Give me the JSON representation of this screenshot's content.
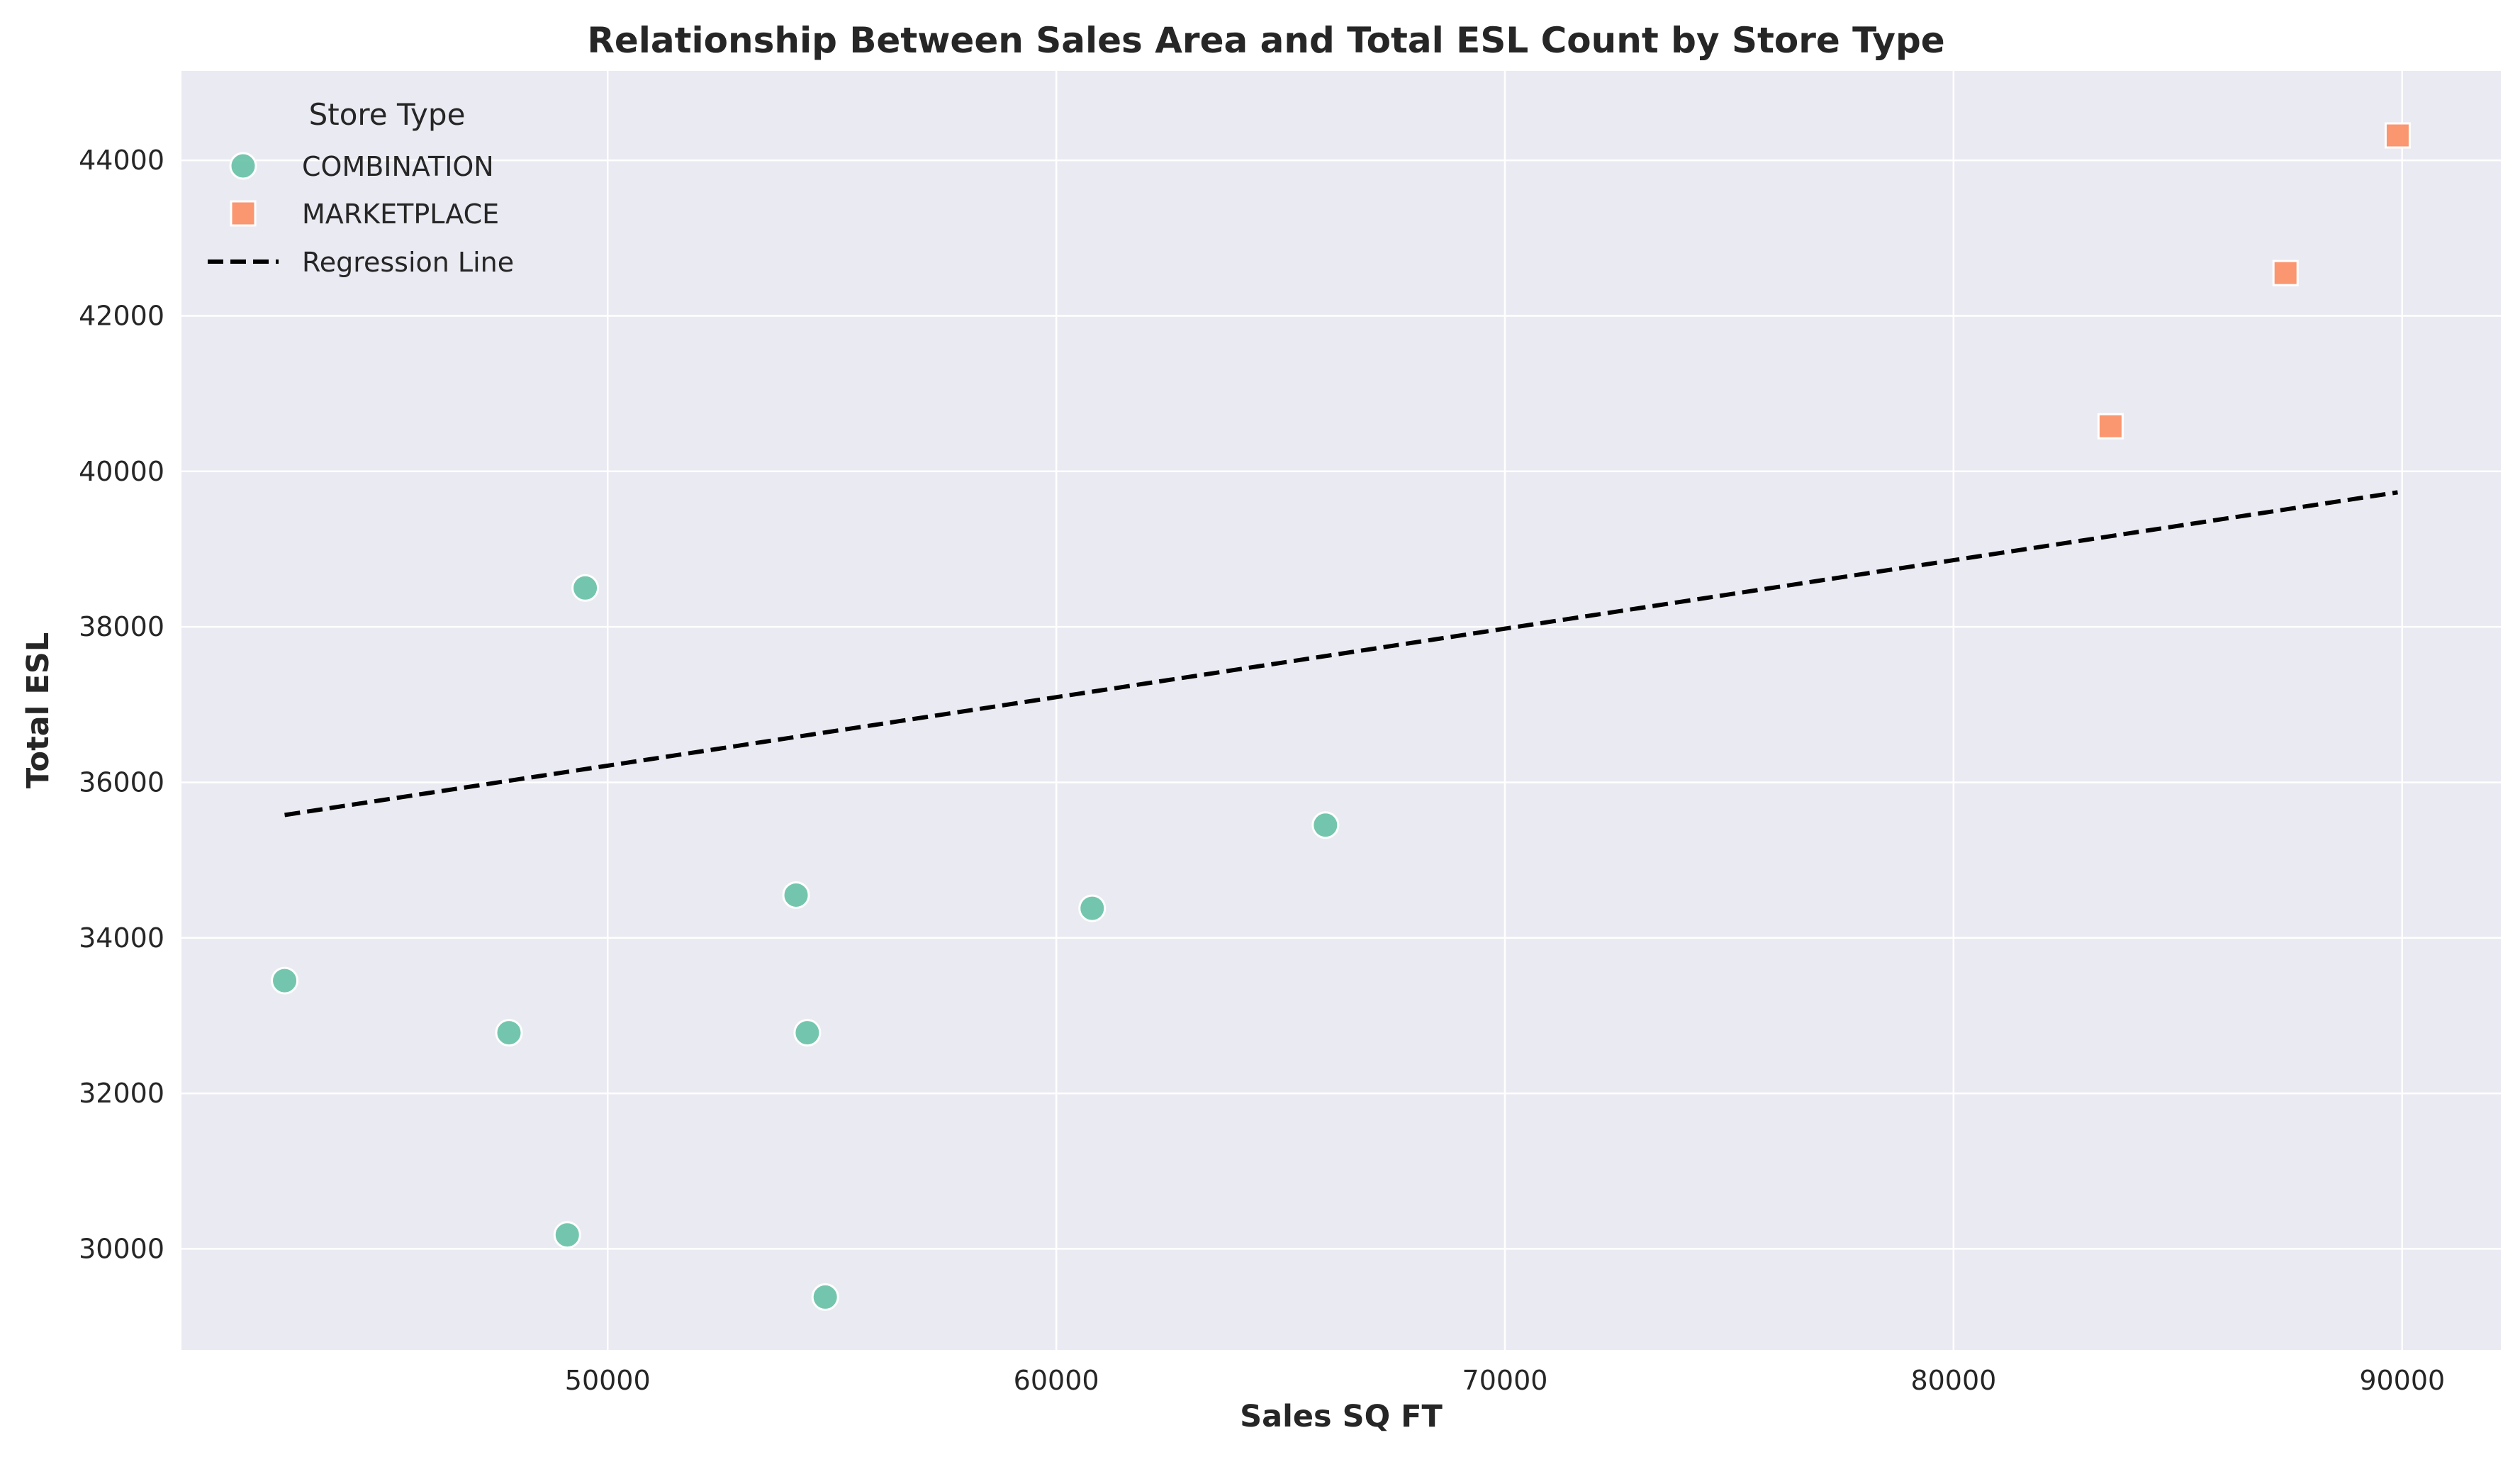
{
  "chart_data": {
    "type": "scatter",
    "title": "Relationship Between Sales Area and Total ESL Count by Store Type",
    "xlabel": "Sales SQ FT",
    "ylabel": "Total ESL",
    "xlim": [
      40500,
      92200
    ],
    "ylim": [
      28700,
      45150
    ],
    "x_ticks": [
      50000,
      60000,
      70000,
      80000,
      90000
    ],
    "x_tick_labels": [
      "50000",
      "60000",
      "70000",
      "80000",
      "90000"
    ],
    "y_ticks": [
      30000,
      32000,
      34000,
      36000,
      38000,
      40000,
      42000,
      44000
    ],
    "y_tick_labels": [
      "30000",
      "32000",
      "34000",
      "36000",
      "38000",
      "40000",
      "42000",
      "44000"
    ],
    "grid": true,
    "legend": {
      "title": "Store Type",
      "placement": "top-left",
      "regression_label": "Regression Line"
    },
    "series": [
      {
        "name": "COMBINATION",
        "marker": "circle",
        "color": "#66c2a5",
        "points": [
          {
            "x": 42800,
            "y": 33450
          },
          {
            "x": 47800,
            "y": 32780
          },
          {
            "x": 49100,
            "y": 30180
          },
          {
            "x": 49500,
            "y": 38500
          },
          {
            "x": 54200,
            "y": 34550
          },
          {
            "x": 54450,
            "y": 32780
          },
          {
            "x": 54850,
            "y": 29380
          },
          {
            "x": 60800,
            "y": 34380
          },
          {
            "x": 66000,
            "y": 35450
          }
        ]
      },
      {
        "name": "MARKETPLACE",
        "marker": "square",
        "color": "#fc8d62",
        "points": [
          {
            "x": 83500,
            "y": 40580
          },
          {
            "x": 87400,
            "y": 42550
          },
          {
            "x": 89900,
            "y": 44320
          }
        ]
      }
    ],
    "regression": {
      "name": "Regression Line",
      "color": "#000000",
      "style": "dashed",
      "x": [
        42800,
        89900
      ],
      "y": [
        35580,
        39730
      ]
    },
    "colors": {
      "background": "#eaeaf2",
      "grid": "#ffffff"
    }
  }
}
